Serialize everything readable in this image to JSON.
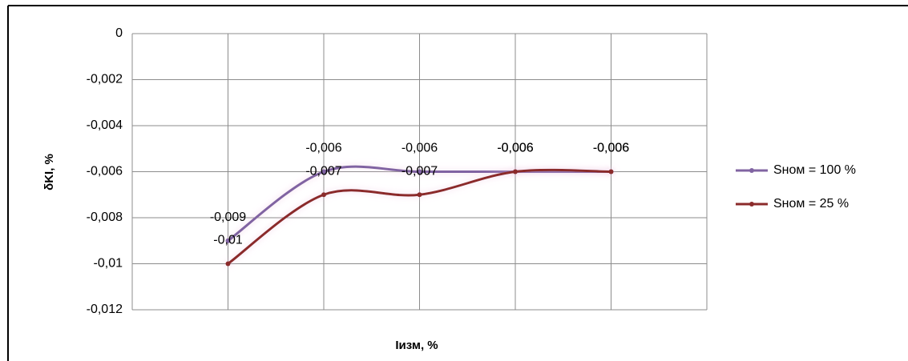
{
  "chart_data": {
    "type": "line",
    "categories": [
      null,
      null,
      null,
      null,
      null
    ],
    "series": [
      {
        "name": "Sном = 100 %",
        "color": "#8064a2",
        "values": [
          -0.009,
          -0.006,
          -0.006,
          -0.006,
          -0.006
        ],
        "value_labels": [
          "-0,009",
          "-0,006",
          "-0,006",
          "-0,006",
          "-0,006"
        ]
      },
      {
        "name": "Sном = 25 %",
        "color": "#8b2b2b",
        "values": [
          -0.01,
          -0.007,
          -0.007,
          -0.006,
          -0.006
        ],
        "value_labels": [
          "-0,01",
          "-0,007",
          "-0,007",
          "-0,006",
          "-0,006"
        ]
      }
    ],
    "ylim": [
      -0.012,
      0
    ],
    "yticks": [
      0,
      {
        "value": -0.002,
        "label": "-0,002"
      },
      {
        "value": -0.004,
        "label": "-0,004"
      },
      {
        "value": -0.006,
        "label": "-0,006"
      },
      {
        "value": -0.008,
        "label": "-0,008"
      },
      {
        "value": -0.01,
        "label": "-0,01"
      },
      {
        "value": -0.012,
        "label": "-0,012"
      }
    ],
    "ylabel": "δKI, %",
    "xlabel": "Iизм, %",
    "grid": true,
    "legend": "right"
  }
}
